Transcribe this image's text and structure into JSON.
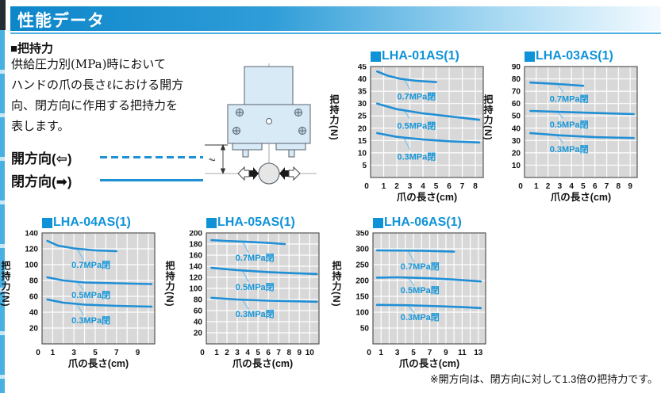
{
  "page": {
    "header": {
      "title": "性能データ"
    },
    "section": {
      "heading": "■把持力"
    },
    "description_lines": [
      "供給圧力別(MPa)時において",
      "ハンドの爪の長さℓにおける開方",
      "向、閉方向に作用する把持力を",
      "表します。"
    ],
    "legend": {
      "open": {
        "label": "開方向(⇦)",
        "style": "dashed"
      },
      "close": {
        "label": "閉方向(➡)",
        "style": "solid"
      }
    },
    "footnote": "※開方向は、閉方向に対して1.3倍の把持力です。",
    "diagram": {
      "length_symbol": "ℓ"
    }
  },
  "colors": {
    "accent_blue": "#1190d5",
    "curve_blue": "#208fd5",
    "leader_blue": "#82c3e8",
    "plot_bg": "#d8d8d8",
    "grid": "#ffffff"
  },
  "chart_data": [
    {
      "type": "line",
      "title": "LHA-01AS(1)",
      "xlabel": "爪の長さ(cm)",
      "ylabel": "把持力(N)",
      "xlim": [
        0,
        8.6
      ],
      "ylim": [
        0,
        45
      ],
      "xticks": [
        0,
        1,
        2,
        3,
        4,
        5,
        6,
        7,
        8
      ],
      "yticks": [
        5,
        10,
        15,
        20,
        25,
        30,
        35,
        40,
        45
      ],
      "grid": true,
      "series": [
        {
          "name": "0.7MPa閉",
          "points": [
            [
              0.5,
              43
            ],
            [
              1.3,
              41.3
            ],
            [
              2.3,
              40
            ],
            [
              3.5,
              39.2
            ],
            [
              5,
              38.7
            ]
          ],
          "label_pos": [
            3.5,
            33
          ],
          "leader": [
            [
              2.55,
              40
            ],
            [
              3.0,
              35.8
            ]
          ]
        },
        {
          "name": "0.5MPa閉",
          "points": [
            [
              0.5,
              30
            ],
            [
              2,
              27.7
            ],
            [
              4,
              26
            ],
            [
              6,
              24.8
            ],
            [
              8.3,
              23.4
            ]
          ],
          "label_pos": [
            3.5,
            21
          ],
          "leader": [
            [
              2.55,
              27.2
            ],
            [
              3.0,
              23.8
            ]
          ]
        },
        {
          "name": "0.3MPa閉",
          "points": [
            [
              0.5,
              18
            ],
            [
              2,
              16.5
            ],
            [
              4,
              15.4
            ],
            [
              6,
              14.7
            ],
            [
              8.3,
              14.2
            ]
          ],
          "label_pos": [
            3.5,
            8.5
          ],
          "leader": [
            [
              2.55,
              15.9
            ],
            [
              3.0,
              11.3
            ]
          ]
        }
      ]
    },
    {
      "type": "line",
      "title": "LHA-03AS(1)",
      "xlabel": "爪の長さ(cm)",
      "ylabel": "把持力(N)",
      "xlim": [
        0,
        9.6
      ],
      "ylim": [
        0,
        90
      ],
      "xticks": [
        0,
        1,
        2,
        3,
        4,
        5,
        6,
        7,
        8,
        9
      ],
      "yticks": [
        10,
        20,
        30,
        40,
        50,
        60,
        70,
        80,
        90
      ],
      "grid": true,
      "series": [
        {
          "name": "0.7MPa閉",
          "points": [
            [
              0.5,
              77
            ],
            [
              2,
              76.3
            ],
            [
              3.5,
              75.4
            ],
            [
              5,
              74.4
            ]
          ],
          "label_pos": [
            3.8,
            64
          ],
          "leader": [
            [
              2.8,
              75.8
            ],
            [
              3.3,
              69
            ]
          ]
        },
        {
          "name": "0.5MPa閉",
          "points": [
            [
              0.5,
              54
            ],
            [
              3,
              53.2
            ],
            [
              6,
              52.3
            ],
            [
              9.3,
              51.4
            ]
          ],
          "label_pos": [
            3.8,
            43
          ],
          "leader": [
            [
              2.8,
              53.3
            ],
            [
              3.3,
              48
            ]
          ]
        },
        {
          "name": "0.3MPa閉",
          "points": [
            [
              0.5,
              36
            ],
            [
              3,
              34.2
            ],
            [
              6,
              32.7
            ],
            [
              9.3,
              32
            ]
          ],
          "label_pos": [
            3.8,
            23
          ],
          "leader": [
            [
              2.8,
              34.2
            ],
            [
              3.3,
              27.5
            ]
          ]
        }
      ]
    },
    {
      "type": "line",
      "title": "LHA-04AS(1)",
      "xlabel": "爪の長さ(cm)",
      "ylabel": "把持力(N)",
      "xlim": [
        0,
        10.6
      ],
      "ylim": [
        0,
        140
      ],
      "xticks": [
        0,
        1,
        3,
        5,
        7,
        9
      ],
      "yticks": [
        20,
        40,
        60,
        80,
        100,
        120,
        140
      ],
      "grid": true,
      "series": [
        {
          "name": "0.7MPa閉",
          "points": [
            [
              0.5,
              130
            ],
            [
              1.5,
              124
            ],
            [
              3,
              120.5
            ],
            [
              5,
              118
            ],
            [
              7,
              117
            ]
          ],
          "label_pos": [
            4.6,
            100
          ],
          "leader": [
            [
              3.3,
              120
            ],
            [
              3.9,
              106
            ]
          ]
        },
        {
          "name": "0.5MPa閉",
          "points": [
            [
              0.5,
              84
            ],
            [
              2,
              80
            ],
            [
              4,
              77.5
            ],
            [
              7,
              76.5
            ],
            [
              10.3,
              75.5
            ]
          ],
          "label_pos": [
            4.6,
            62
          ],
          "leader": [
            [
              3.3,
              78
            ],
            [
              3.9,
              68
            ]
          ]
        },
        {
          "name": "0.3MPa閉",
          "points": [
            [
              0.5,
              56
            ],
            [
              2,
              52
            ],
            [
              4,
              49.5
            ],
            [
              7,
              48
            ],
            [
              10.3,
              47
            ]
          ],
          "label_pos": [
            4.6,
            30
          ],
          "leader": [
            [
              3.3,
              49.8
            ],
            [
              3.9,
              36
            ]
          ]
        }
      ]
    },
    {
      "type": "line",
      "title": "LHA-05AS(1)",
      "xlabel": "爪の長さ(cm)",
      "ylabel": "把持力(N)",
      "xlim": [
        0,
        10.9
      ],
      "ylim": [
        0,
        200
      ],
      "xticks": [
        0,
        1,
        2,
        3,
        4,
        5,
        6,
        7,
        8,
        9,
        10
      ],
      "yticks": [
        20,
        40,
        60,
        80,
        100,
        120,
        140,
        160,
        180,
        200
      ],
      "grid": true,
      "series": [
        {
          "name": "0.7MPa閉",
          "points": [
            [
              0.5,
              187
            ],
            [
              2,
              185.5
            ],
            [
              4,
              184
            ],
            [
              6,
              182
            ],
            [
              7.6,
              180
            ]
          ],
          "label_pos": [
            4.7,
            156
          ],
          "leader": [
            [
              3.5,
              184.3
            ],
            [
              4.1,
              164
            ]
          ]
        },
        {
          "name": "0.5MPa閉",
          "points": [
            [
              0.5,
              137
            ],
            [
              3,
              133
            ],
            [
              6,
              129.5
            ],
            [
              8.5,
              127.5
            ],
            [
              10.7,
              126
            ]
          ],
          "label_pos": [
            4.7,
            103
          ],
          "leader": [
            [
              3.5,
              132.3
            ],
            [
              4.1,
              111
            ]
          ]
        },
        {
          "name": "0.3MPa閉",
          "points": [
            [
              0.5,
              83
            ],
            [
              3,
              80
            ],
            [
              6,
              77.8
            ],
            [
              10.7,
              76
            ]
          ],
          "label_pos": [
            4.7,
            54
          ],
          "leader": [
            [
              3.5,
              79.6
            ],
            [
              4.1,
              62
            ]
          ]
        }
      ]
    },
    {
      "type": "line",
      "title": "LHA-06AS(1)",
      "xlabel": "爪の長さ(cm)",
      "ylabel": "把持力(N)",
      "xlim": [
        0,
        13.9
      ],
      "ylim": [
        0,
        350
      ],
      "xticks": [
        0,
        1,
        3,
        5,
        7,
        9,
        11,
        13
      ],
      "yticks": [
        50,
        100,
        150,
        200,
        250,
        300,
        350
      ],
      "grid": true,
      "series": [
        {
          "name": "0.7MPa閉",
          "points": [
            [
              0.5,
              295
            ],
            [
              3,
              294.5
            ],
            [
              6,
              294
            ],
            [
              10,
              291
            ]
          ],
          "label_pos": [
            5.8,
            245
          ],
          "leader": [
            [
              4.3,
              294
            ],
            [
              5.1,
              258
            ]
          ]
        },
        {
          "name": "0.5MPa閉",
          "points": [
            [
              0.5,
              209
            ],
            [
              3,
              210
            ],
            [
              7,
              207
            ],
            [
              10,
              203
            ],
            [
              13.3,
              197
            ]
          ],
          "label_pos": [
            5.8,
            170
          ],
          "leader": [
            [
              4.3,
              209
            ],
            [
              5.1,
              183
            ]
          ]
        },
        {
          "name": "0.3MPa閉",
          "points": [
            [
              0.5,
              123
            ],
            [
              4,
              122
            ],
            [
              8,
              119
            ],
            [
              11,
              116
            ],
            [
              13.3,
              113
            ]
          ],
          "label_pos": [
            5.8,
            85
          ],
          "leader": [
            [
              4.3,
              122
            ],
            [
              5.1,
              98
            ]
          ]
        }
      ]
    }
  ]
}
